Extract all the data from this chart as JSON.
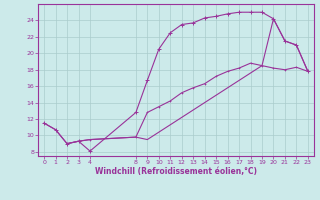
{
  "title": "Windchill (Refroidissement éolien,°C)",
  "background_color": "#cceaea",
  "grid_color": "#aacccc",
  "line_color": "#993399",
  "spine_color": "#993399",
  "xlim": [
    -0.5,
    23.5
  ],
  "ylim": [
    7.5,
    26.0
  ],
  "xticks": [
    0,
    1,
    2,
    3,
    4,
    8,
    9,
    10,
    11,
    12,
    13,
    14,
    15,
    16,
    17,
    18,
    19,
    20,
    21,
    22,
    23
  ],
  "yticks": [
    8,
    10,
    12,
    14,
    16,
    18,
    20,
    22,
    24
  ],
  "line1_x": [
    0,
    1,
    2,
    3,
    4,
    8,
    9,
    10,
    11,
    12,
    13,
    14,
    15,
    16,
    17,
    18,
    19,
    20,
    21,
    22,
    23
  ],
  "line1_y": [
    11.5,
    10.7,
    9.0,
    9.3,
    8.1,
    12.8,
    16.7,
    20.5,
    22.5,
    23.5,
    23.7,
    24.3,
    24.5,
    24.8,
    25.0,
    25.0,
    25.0,
    24.2,
    21.5,
    21.0,
    17.8
  ],
  "line2_x": [
    0,
    1,
    2,
    3,
    4,
    8,
    9,
    10,
    11,
    12,
    13,
    14,
    15,
    16,
    17,
    18,
    19,
    20,
    21,
    22,
    23
  ],
  "line2_y": [
    11.5,
    10.7,
    9.0,
    9.3,
    9.5,
    9.8,
    12.8,
    13.5,
    14.2,
    15.2,
    15.8,
    16.3,
    17.2,
    17.8,
    18.2,
    18.8,
    18.5,
    18.2,
    18.0,
    18.3,
    17.8
  ],
  "line3_x": [
    2,
    3,
    4,
    8,
    9,
    19,
    20,
    21,
    22,
    23
  ],
  "line3_y": [
    9.0,
    9.3,
    9.5,
    9.8,
    9.5,
    18.5,
    24.2,
    21.5,
    21.0,
    17.8
  ]
}
